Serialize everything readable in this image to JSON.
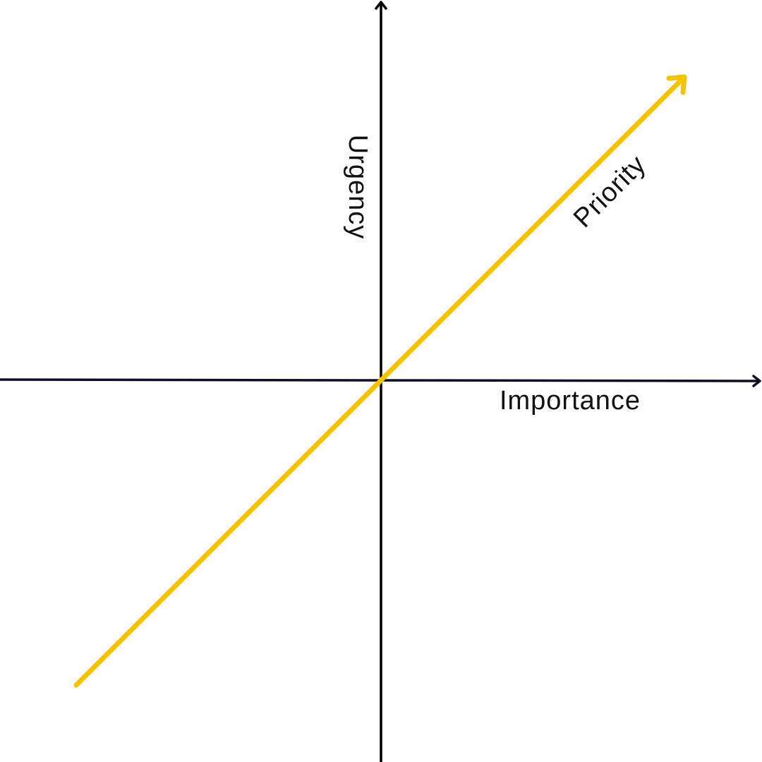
{
  "labels": {
    "vertical_axis": "Urgency",
    "horizontal_axis": "Importance",
    "diagonal_arrow": "Priority"
  },
  "colors": {
    "vertical_axis": "#000000",
    "horizontal_axis": "#0d0d26",
    "priority_arrow": "#f5c400",
    "text": "#111111"
  }
}
